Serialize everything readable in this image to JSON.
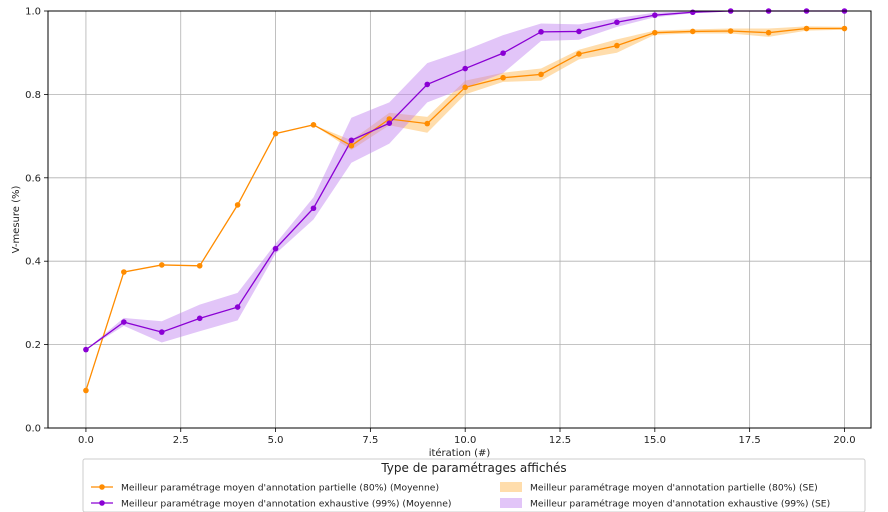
{
  "chart_data": {
    "type": "line",
    "xlabel": "itération (#)",
    "ylabel": "V-mesure (%)",
    "xlim": [
      -1,
      20.7
    ],
    "ylim": [
      0.0,
      1.0
    ],
    "xticks": [
      0.0,
      2.5,
      5.0,
      7.5,
      10.0,
      12.5,
      15.0,
      17.5,
      20.0
    ],
    "xtick_labels": [
      "0.0",
      "2.5",
      "5.0",
      "7.5",
      "10.0",
      "12.5",
      "15.0",
      "17.5",
      "20.0"
    ],
    "yticks": [
      0.0,
      0.2,
      0.4,
      0.6,
      0.8,
      1.0
    ],
    "ytick_labels": [
      "0.0",
      "0.2",
      "0.4",
      "0.6",
      "0.8",
      "1.0"
    ],
    "grid": true,
    "legend_position": "bottom-center",
    "legend_title": "Type de paramétrages affichés",
    "series": [
      {
        "name": "Meilleur paramétrage moyen d'annotation partielle (80%) (Moyenne)",
        "band_name": "Meilleur paramétrage moyen d'annotation partielle (80%) (SE)",
        "color": "#ff8c00",
        "band_color": "#ffb347",
        "x": [
          0,
          1,
          2,
          3,
          4,
          5,
          6,
          7,
          8,
          9,
          10,
          11,
          12,
          13,
          14,
          15,
          16,
          17,
          18,
          19,
          20
        ],
        "values": [
          0.09,
          0.374,
          0.391,
          0.389,
          0.535,
          0.706,
          0.727,
          0.677,
          0.741,
          0.73,
          0.817,
          0.84,
          0.848,
          0.897,
          0.917,
          0.948,
          0.951,
          0.952,
          0.948,
          0.958,
          0.958
        ],
        "lower": [
          0.09,
          0.374,
          0.391,
          0.389,
          0.535,
          0.706,
          0.727,
          0.667,
          0.726,
          0.708,
          0.8,
          0.83,
          0.833,
          0.884,
          0.9,
          0.943,
          0.946,
          0.946,
          0.938,
          0.953,
          0.955
        ],
        "upper": [
          0.09,
          0.374,
          0.391,
          0.389,
          0.535,
          0.706,
          0.727,
          0.69,
          0.756,
          0.746,
          0.833,
          0.852,
          0.862,
          0.907,
          0.932,
          0.953,
          0.956,
          0.958,
          0.958,
          0.963,
          0.962
        ]
      },
      {
        "name": "Meilleur paramétrage moyen d'annotation exhaustive (99%) (Moyenne)",
        "band_name": "Meilleur paramétrage moyen d'annotation exhaustive (99%) (SE)",
        "color": "#8a00d4",
        "band_color": "#bf7ff0",
        "x": [
          0,
          1,
          2,
          3,
          4,
          5,
          6,
          7,
          8,
          9,
          10,
          11,
          12,
          13,
          14,
          15,
          16,
          17,
          18,
          19,
          20
        ],
        "values": [
          0.188,
          0.254,
          0.23,
          0.263,
          0.29,
          0.43,
          0.527,
          0.69,
          0.731,
          0.824,
          0.862,
          0.899,
          0.95,
          0.951,
          0.973,
          0.99,
          0.997,
          1.0,
          1.0,
          1.0,
          1.0
        ],
        "lower": [
          0.188,
          0.245,
          0.205,
          0.232,
          0.258,
          0.418,
          0.5,
          0.636,
          0.682,
          0.781,
          0.816,
          0.851,
          0.928,
          0.931,
          0.962,
          0.985,
          0.995,
          1.0,
          1.0,
          1.0,
          1.0
        ],
        "upper": [
          0.188,
          0.264,
          0.256,
          0.296,
          0.324,
          0.442,
          0.553,
          0.744,
          0.781,
          0.875,
          0.906,
          0.942,
          0.97,
          0.968,
          0.983,
          0.996,
          1.0,
          1.0,
          1.0,
          1.0,
          1.0
        ]
      }
    ]
  }
}
